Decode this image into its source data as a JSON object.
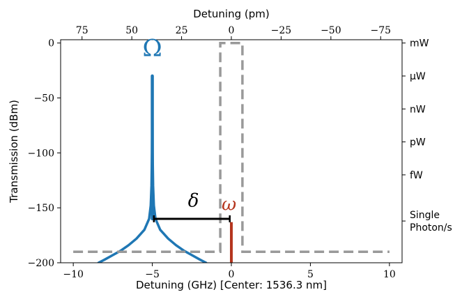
{
  "chart_data": {
    "type": "line",
    "x_axis": {
      "label": "Detuning (GHz) [Center: 1536.3 nm]",
      "range": [
        -10.8,
        10.8
      ],
      "ticks": [
        {
          "value": -10,
          "label": "−10"
        },
        {
          "value": -5,
          "label": "−5"
        },
        {
          "value": 0,
          "label": "0"
        },
        {
          "value": 5,
          "label": "5"
        },
        {
          "value": 10,
          "label": "10"
        }
      ]
    },
    "top_axis": {
      "label": "Detuning (pm)",
      "ticks": [
        {
          "value": 75,
          "label": "75"
        },
        {
          "value": 50,
          "label": "50"
        },
        {
          "value": 25,
          "label": "25"
        },
        {
          "value": 0,
          "label": "0"
        },
        {
          "value": -25,
          "label": "−25"
        },
        {
          "value": -50,
          "label": "−50"
        },
        {
          "value": -75,
          "label": "−75"
        }
      ]
    },
    "y_axis": {
      "label": "Transmission (dBm)",
      "range": [
        -200,
        3
      ],
      "ticks": [
        {
          "value": 0,
          "label": "0"
        },
        {
          "value": -50,
          "label": "−50"
        },
        {
          "value": -100,
          "label": "−100"
        },
        {
          "value": -150,
          "label": "−150"
        },
        {
          "value": -200,
          "label": "−200"
        }
      ]
    },
    "right_axis": {
      "ticks": [
        {
          "value": 0,
          "lines": [
            "mW"
          ]
        },
        {
          "value": -30,
          "lines": [
            "μW"
          ]
        },
        {
          "value": -60,
          "lines": [
            "nW"
          ]
        },
        {
          "value": -90,
          "lines": [
            "pW"
          ]
        },
        {
          "value": -120,
          "lines": [
            "fW"
          ]
        },
        {
          "value": -162,
          "lines": [
            "Single",
            "Photon/s"
          ]
        }
      ]
    },
    "series": [
      {
        "role": "control-pump",
        "color": "#1f77b4",
        "style": "solid",
        "center_x": -5.0,
        "peak_y": -30,
        "floor_y": -160,
        "skirt_points": [
          {
            "dx": 0.0,
            "y": -30
          },
          {
            "dx": 0.005,
            "y": -60
          },
          {
            "dx": 0.02,
            "y": -100
          },
          {
            "dx": 0.05,
            "y": -130
          },
          {
            "dx": 0.1,
            "y": -148
          },
          {
            "dx": 0.2,
            "y": -160
          },
          {
            "dx": 0.5,
            "y": -170
          },
          {
            "dx": 1.0,
            "y": -178
          },
          {
            "dx": 1.5,
            "y": -184
          },
          {
            "dx": 2.0,
            "y": -189
          },
          {
            "dx": 2.5,
            "y": -193
          },
          {
            "dx": 3.0,
            "y": -197
          },
          {
            "dx": 3.4,
            "y": -200
          }
        ]
      },
      {
        "role": "signal",
        "color": "#b5361f",
        "style": "solid",
        "x": 0.0,
        "y_top": -163,
        "y_bottom": -200
      },
      {
        "role": "filter",
        "color": "#999999",
        "style": "dashed",
        "points": [
          [
            -10.0,
            -190
          ],
          [
            -0.7,
            -190
          ],
          [
            -0.7,
            0
          ],
          [
            0.7,
            0
          ],
          [
            0.7,
            -190
          ],
          [
            10.0,
            -190
          ]
        ]
      }
    ],
    "annotations": [
      {
        "name": "omega-label",
        "text": "Ω",
        "x": -5.0,
        "y": -12,
        "color": "#1f77b4"
      },
      {
        "name": "small-omega-label",
        "text": "ω",
        "x": -0.15,
        "y": -152,
        "color": "#b5361f"
      },
      {
        "name": "delta-label",
        "text": "δ",
        "x": -2.4,
        "y": -149,
        "color": "#000000"
      }
    ],
    "delta_bracket": {
      "x_start": -4.9,
      "x_end": -0.1,
      "y": -160,
      "color": "#000000"
    }
  }
}
